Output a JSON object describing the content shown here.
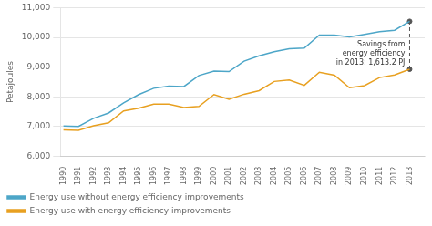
{
  "chart_data": {
    "type": "line",
    "x": [
      1990,
      1991,
      1992,
      1993,
      1994,
      1995,
      1996,
      1997,
      1998,
      1999,
      2000,
      2001,
      2002,
      2003,
      2004,
      2005,
      2006,
      2007,
      2008,
      2009,
      2010,
      2011,
      2012,
      2013
    ],
    "series": [
      {
        "name": "Energy use without energy efficiency improvements",
        "color": "#4da6c8",
        "values": [
          7020,
          7010,
          7280,
          7460,
          7800,
          8080,
          8290,
          8360,
          8350,
          8720,
          8870,
          8850,
          9200,
          9380,
          9520,
          9620,
          9640,
          10080,
          10080,
          10020,
          10100,
          10190,
          10240,
          10540
        ]
      },
      {
        "name": "Energy use with energy efficiency improvements",
        "color": "#e8a020",
        "values": [
          6890,
          6880,
          7030,
          7130,
          7530,
          7620,
          7760,
          7760,
          7640,
          7680,
          8080,
          7920,
          8090,
          8210,
          8520,
          8570,
          8390,
          8830,
          8730,
          8310,
          8380,
          8650,
          8740,
          8930
        ]
      }
    ],
    "ylabel": "Petajoules",
    "xlim": [
      1989.8,
      2014.0
    ],
    "xticks": [
      1990,
      1991,
      1992,
      1993,
      1994,
      1995,
      1996,
      1997,
      1998,
      1999,
      2000,
      2001,
      2002,
      2003,
      2004,
      2005,
      2006,
      2007,
      2008,
      2009,
      2010,
      2011,
      2012,
      2013
    ],
    "ylim": [
      6000,
      11000
    ],
    "yticks": [
      {
        "value": 6000,
        "label": "6,000"
      },
      {
        "value": 7000,
        "label": "7,000"
      },
      {
        "value": 8000,
        "label": "8,000"
      },
      {
        "value": 9000,
        "label": "9,000"
      },
      {
        "value": 10000,
        "label": "10,000"
      },
      {
        "value": 11000,
        "label": "11,000"
      }
    ],
    "grid": "y",
    "legend": "lower left",
    "annotation": {
      "text": "Savings from\nenergy efficiency\nin 2013: 1,613.2 PJ",
      "x": 2013,
      "y": [
        8930,
        10540
      ],
      "color": "#555555"
    }
  }
}
